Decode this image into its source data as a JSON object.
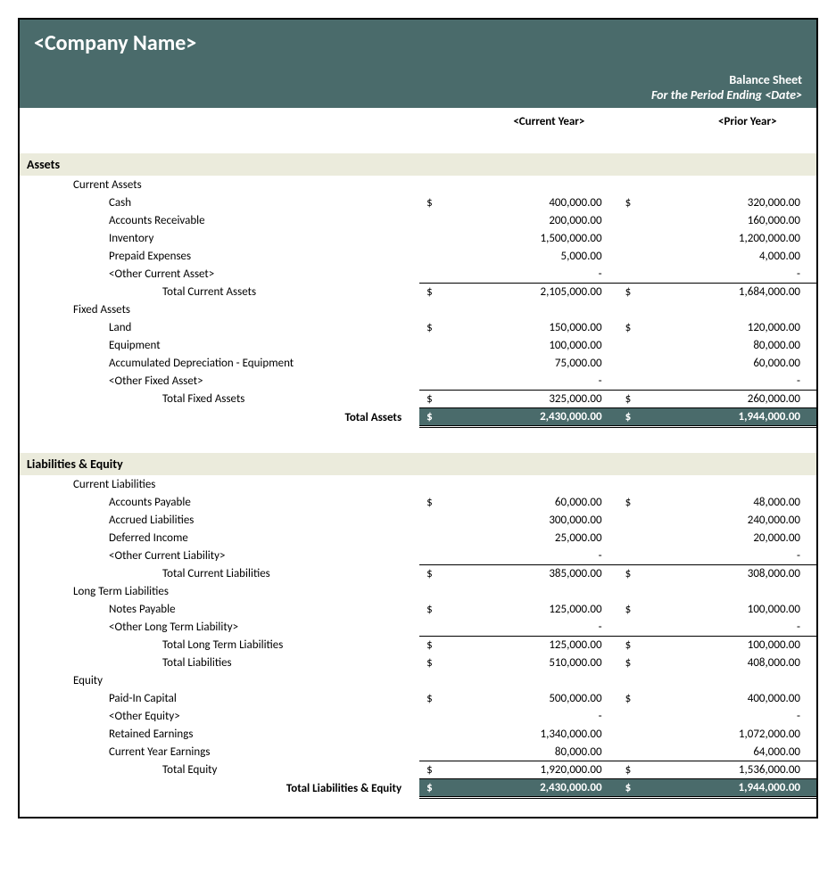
{
  "header": {
    "company": "<Company Name>",
    "title": "Balance Sheet",
    "period": "For the Period Ending <Date>"
  },
  "columns": {
    "current": "<Current Year>",
    "prior": "<Prior Year>"
  },
  "currency": "$",
  "colors": {
    "header_bg": "#4a6b6b",
    "section_bg": "#ebebdc",
    "text": "#000000"
  },
  "sections": {
    "assets": {
      "title": "Assets",
      "groups": [
        {
          "name": "Current Assets",
          "items": [
            {
              "label": "Cash",
              "current": "400,000.00",
              "prior": "320,000.00",
              "show_sym": true
            },
            {
              "label": "Accounts Receivable",
              "current": "200,000.00",
              "prior": "160,000.00"
            },
            {
              "label": "Inventory",
              "current": "1,500,000.00",
              "prior": "1,200,000.00"
            },
            {
              "label": "Prepaid Expenses",
              "current": "5,000.00",
              "prior": "4,000.00"
            },
            {
              "label": "<Other Current Asset>",
              "current": "-",
              "prior": "-"
            }
          ],
          "subtotal": {
            "label": "Total Current Assets",
            "current": "2,105,000.00",
            "prior": "1,684,000.00"
          }
        },
        {
          "name": "Fixed Assets",
          "items": [
            {
              "label": "Land",
              "current": "150,000.00",
              "prior": "120,000.00",
              "show_sym": true
            },
            {
              "label": "Equipment",
              "current": "100,000.00",
              "prior": "80,000.00"
            },
            {
              "label": "Accumulated Depreciation - Equipment",
              "current": "75,000.00",
              "prior": "60,000.00"
            },
            {
              "label": "<Other Fixed Asset>",
              "current": "-",
              "prior": "-"
            }
          ],
          "subtotal": {
            "label": "Total Fixed Assets",
            "current": "325,000.00",
            "prior": "260,000.00"
          }
        }
      ],
      "grand": {
        "label": "Total Assets",
        "current": "2,430,000.00",
        "prior": "1,944,000.00"
      }
    },
    "liab_equity": {
      "title": "Liabilities & Equity",
      "groups": [
        {
          "name": "Current Liabilities",
          "items": [
            {
              "label": "Accounts Payable",
              "current": "60,000.00",
              "prior": "48,000.00",
              "show_sym": true
            },
            {
              "label": "Accrued Liabilities",
              "current": "300,000.00",
              "prior": "240,000.00"
            },
            {
              "label": "Deferred Income",
              "current": "25,000.00",
              "prior": "20,000.00"
            },
            {
              "label": "<Other Current Liability>",
              "current": "-",
              "prior": "-"
            }
          ],
          "subtotal": {
            "label": "Total Current Liabilities",
            "current": "385,000.00",
            "prior": "308,000.00"
          }
        },
        {
          "name": "Long Term Liabilities",
          "items": [
            {
              "label": "Notes Payable",
              "current": "125,000.00",
              "prior": "100,000.00",
              "show_sym": true
            },
            {
              "label": "<Other Long Term Liability>",
              "current": "-",
              "prior": "-"
            }
          ],
          "subtotal": {
            "label": "Total Long Term Liabilities",
            "current": "125,000.00",
            "prior": "100,000.00"
          },
          "extra_subtotal": {
            "label": "Total Liabilities",
            "current": "510,000.00",
            "prior": "408,000.00"
          }
        },
        {
          "name": "Equity",
          "items": [
            {
              "label": "Paid-In Capital",
              "current": "500,000.00",
              "prior": "400,000.00",
              "show_sym": true
            },
            {
              "label": "<Other Equity>",
              "current": "-",
              "prior": "-"
            },
            {
              "label": "Retained Earnings",
              "current": "1,340,000.00",
              "prior": "1,072,000.00"
            },
            {
              "label": "Current Year Earnings",
              "current": "80,000.00",
              "prior": "64,000.00"
            }
          ],
          "subtotal": {
            "label": "Total Equity",
            "current": "1,920,000.00",
            "prior": "1,536,000.00"
          }
        }
      ],
      "grand": {
        "label": "Total Liabilities & Equity",
        "current": "2,430,000.00",
        "prior": "1,944,000.00"
      }
    }
  }
}
